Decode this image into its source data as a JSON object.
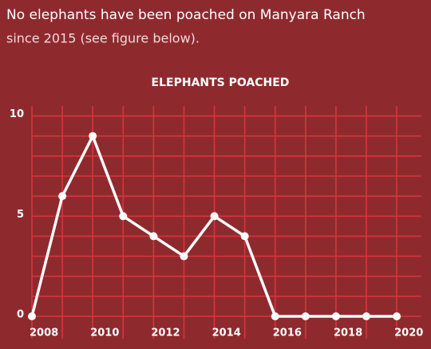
{
  "header": {
    "line1": "No elephants have been poached on Manyara Ranch",
    "line2": "since 2015 (see figure below)."
  },
  "chart_data": {
    "type": "line",
    "title": "ELEPHANTS POACHED",
    "x": [
      2008,
      2009,
      2010,
      2011,
      2012,
      2013,
      2014,
      2015,
      2016,
      2017,
      2018,
      2019,
      2020
    ],
    "values": [
      0,
      6,
      9,
      5,
      4,
      3,
      5,
      4,
      0,
      0,
      0,
      0,
      0
    ],
    "color": "#ffffff",
    "xlim": [
      2008,
      2020.8
    ],
    "xticks": [
      2008,
      2010,
      2012,
      2014,
      2016,
      2018,
      2020
    ],
    "ylim": [
      0,
      10.5
    ],
    "yticks": [
      0,
      5,
      10
    ],
    "x_gridlines": [
      2008,
      2009,
      2010,
      2011,
      2012,
      2013,
      2014,
      2015,
      2016,
      2017,
      2018,
      2019,
      2020
    ],
    "y_gridlines": [
      0,
      1,
      2,
      3,
      4,
      5,
      6,
      7,
      8,
      9,
      10
    ],
    "grid": true,
    "markers": true
  }
}
